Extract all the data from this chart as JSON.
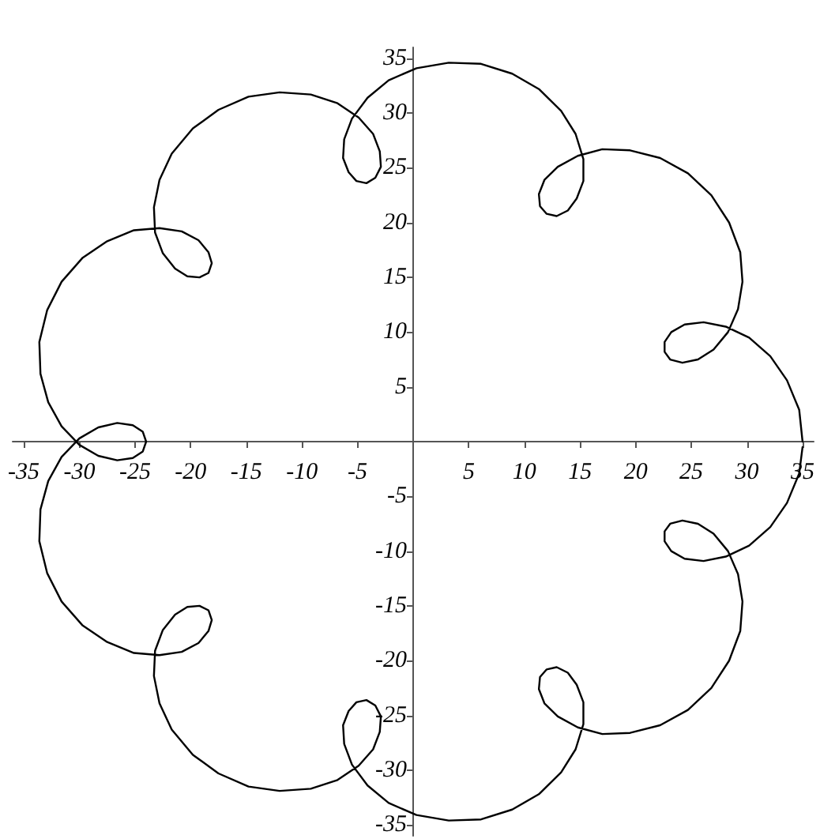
{
  "chart_data": {
    "type": "line",
    "marker": "none",
    "line_style": "solid",
    "grid": false,
    "series": [
      {
        "color": "#000000",
        "x": [
          35.0,
          34.7,
          33.6,
          32.1,
          30.2,
          28.1,
          26.1,
          24.4,
          23.2,
          22.6,
          22.6,
          23.1,
          24.2,
          25.6,
          27.0,
          28.3,
          29.2,
          29.6,
          29.4,
          28.4,
          26.8,
          24.7,
          22.2,
          19.5,
          17.0,
          14.8,
          13.0,
          11.8,
          11.3,
          11.4,
          12.0,
          12.9,
          13.9,
          14.7,
          15.3,
          15.3,
          14.6,
          13.3,
          11.3,
          8.9,
          6.1,
          3.2,
          0.3,
          -2.2,
          -4.1,
          -5.5,
          -6.2,
          -6.3,
          -5.8,
          -5.1,
          -4.2,
          -3.4,
          -2.9,
          -3.0,
          -3.6,
          -4.9,
          -6.8,
          -9.2,
          -12.0,
          -14.8,
          -17.5,
          -19.8,
          -21.7,
          -22.8,
          -23.3,
          -23.2,
          -22.5,
          -21.4,
          -20.3,
          -19.2,
          -18.4,
          -18.1,
          -18.4,
          -19.3,
          -20.8,
          -22.8,
          -25.1,
          -27.5,
          -29.7,
          -31.6,
          -32.9,
          -33.6,
          -33.5,
          -32.8,
          -31.6,
          -30.0,
          -28.3,
          -26.6,
          -25.2,
          -24.3,
          -24.0,
          -24.3,
          -25.2,
          -26.6,
          -28.3,
          -30.0,
          -31.6,
          -32.8,
          -33.5,
          -33.6,
          -32.9,
          -31.6,
          -29.7,
          -27.5,
          -25.1,
          -22.8,
          -20.8,
          -19.3,
          -18.4,
          -18.1,
          -18.4,
          -19.2,
          -20.3,
          -21.4,
          -22.5,
          -23.2,
          -23.3,
          -22.8,
          -21.7,
          -19.8,
          -17.5,
          -14.8,
          -12.0,
          -9.2,
          -6.8,
          -4.9,
          -3.6,
          -3.0,
          -2.9,
          -3.4,
          -4.2,
          -5.1,
          -5.8,
          -6.3,
          -6.2,
          -5.5,
          -4.1,
          -2.2,
          0.3,
          3.2,
          6.1,
          8.9,
          11.3,
          13.3,
          14.6,
          15.3,
          15.3,
          14.7,
          13.9,
          12.9,
          12.0,
          11.4,
          11.3,
          11.8,
          13.0,
          14.8,
          17.0,
          19.5,
          22.2,
          24.7,
          26.8,
          28.4,
          29.4,
          29.6,
          29.2,
          28.3,
          27.0,
          25.6,
          24.2,
          23.1,
          22.6,
          22.6,
          23.2,
          24.4,
          26.1,
          28.1,
          30.2,
          32.1,
          33.6,
          34.7,
          35.0
        ],
        "values": [
          0,
          2.9,
          5.6,
          7.8,
          9.5,
          10.5,
          10.9,
          10.7,
          10.0,
          9.1,
          8.2,
          7.5,
          7.2,
          7.5,
          8.4,
          10.0,
          12.1,
          14.6,
          17.3,
          20.0,
          22.5,
          24.5,
          25.9,
          26.6,
          26.7,
          26.1,
          25.1,
          23.9,
          22.6,
          21.5,
          20.8,
          20.6,
          21.1,
          22.2,
          23.8,
          25.8,
          28.1,
          30.2,
          32.2,
          33.6,
          34.5,
          34.6,
          34.1,
          33.0,
          31.4,
          29.5,
          27.6,
          25.9,
          24.6,
          23.8,
          23.6,
          24.1,
          25.1,
          26.5,
          28.1,
          29.6,
          30.9,
          31.7,
          31.9,
          31.5,
          30.3,
          28.6,
          26.3,
          23.9,
          21.4,
          19.1,
          17.2,
          15.8,
          15.1,
          15.0,
          15.4,
          16.3,
          17.3,
          18.4,
          19.2,
          19.5,
          19.3,
          18.3,
          16.8,
          14.6,
          12.0,
          9.1,
          6.2,
          3.6,
          1.4,
          -0.3,
          -1.3,
          -1.7,
          -1.5,
          -0.9,
          0,
          0.9,
          1.5,
          1.7,
          1.3,
          0.3,
          -1.4,
          -3.6,
          -6.2,
          -9.1,
          -12.0,
          -14.6,
          -16.8,
          -18.3,
          -19.3,
          -19.5,
          -19.2,
          -18.4,
          -17.3,
          -16.3,
          -15.4,
          -15.0,
          -15.1,
          -15.8,
          -17.2,
          -19.1,
          -21.4,
          -23.9,
          -26.3,
          -28.6,
          -30.3,
          -31.5,
          -31.9,
          -31.7,
          -30.9,
          -29.6,
          -28.1,
          -26.5,
          -25.1,
          -24.1,
          -23.6,
          -23.8,
          -24.6,
          -25.9,
          -27.6,
          -29.5,
          -31.4,
          -33.0,
          -34.1,
          -34.6,
          -34.5,
          -33.6,
          -32.2,
          -30.2,
          -28.1,
          -25.8,
          -23.8,
          -22.2,
          -21.1,
          -20.6,
          -20.8,
          -21.5,
          -22.6,
          -23.9,
          -25.1,
          -26.1,
          -26.7,
          -26.6,
          -25.9,
          -24.5,
          -22.5,
          -20.0,
          -17.3,
          -14.6,
          -12.1,
          -10.0,
          -8.4,
          -7.5,
          -7.2,
          -7.5,
          -8.2,
          -9.1,
          -10.0,
          -10.7,
          -10.9,
          -10.5,
          -9.5,
          -7.8,
          -5.6,
          -2.9,
          -0.5
        ]
      }
    ],
    "xlim": [
      -36,
      36
    ],
    "ylim": [
      -36,
      36
    ],
    "xticks": [
      -35,
      -30,
      -25,
      -20,
      -15,
      -10,
      -5,
      5,
      10,
      15,
      20,
      25,
      30,
      35
    ],
    "yticks": [
      -35,
      -30,
      -25,
      -20,
      -15,
      -10,
      -5,
      5,
      10,
      15,
      20,
      25,
      30,
      35
    ]
  }
}
